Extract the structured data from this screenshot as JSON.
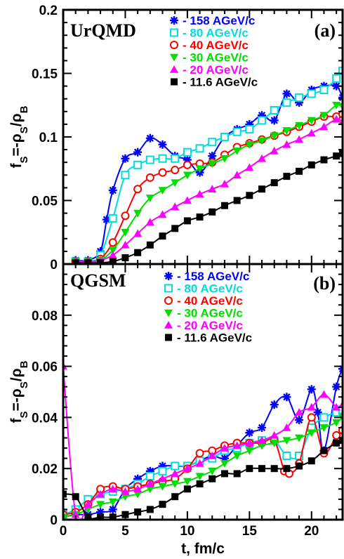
{
  "chart_data": [
    {
      "type": "line",
      "panel_label": "(a)",
      "model": "UrQMD",
      "ylabel": "f_S=-ρ_S/ρ_B",
      "ylim": [
        0,
        0.2
      ],
      "xlim": [
        0,
        22.5
      ],
      "yticks": [
        "0",
        "0.05",
        "0.1",
        "0.15",
        "0.2"
      ],
      "xticks": [
        "0",
        "5",
        "10",
        "15",
        "20"
      ],
      "series": [
        {
          "name": "- 158 AGeV/c",
          "color": "#0000ff",
          "marker": "star",
          "x": [
            1,
            2,
            3,
            3.5,
            4,
            5,
            6,
            7,
            8,
            9,
            10,
            11,
            12,
            13,
            14,
            15,
            16,
            17,
            18,
            19,
            20,
            21,
            22,
            22.5
          ],
          "y": [
            0.003,
            0.003,
            0.01,
            0.035,
            0.058,
            0.083,
            0.088,
            0.099,
            0.094,
            0.085,
            0.082,
            0.072,
            0.085,
            0.1,
            0.106,
            0.11,
            0.117,
            0.113,
            0.134,
            0.127,
            0.137,
            0.14,
            0.14,
            0.131
          ]
        },
        {
          "name": "- 80 AGeV/c",
          "color": "#00dddd",
          "marker": "open-square",
          "x": [
            1,
            2,
            3,
            4,
            5,
            6,
            7,
            8,
            9,
            10,
            11,
            12,
            13,
            14,
            15,
            16,
            17,
            18,
            19,
            20,
            21,
            22,
            22.5
          ],
          "y": [
            0.002,
            0.002,
            0.007,
            0.036,
            0.07,
            0.078,
            0.082,
            0.083,
            0.083,
            0.088,
            0.091,
            0.096,
            0.1,
            0.104,
            0.106,
            0.113,
            0.121,
            0.127,
            0.131,
            0.134,
            0.137,
            0.146,
            0.152
          ]
        },
        {
          "name": "- 40 AGeV/c",
          "color": "#ff0000",
          "marker": "open-circle",
          "x": [
            1,
            2,
            3,
            4,
            5,
            6,
            7,
            8,
            9,
            10,
            11,
            12,
            13,
            14,
            15,
            16,
            17,
            18,
            19,
            20,
            21,
            22,
            22.5
          ],
          "y": [
            0.002,
            0.002,
            0.004,
            0.017,
            0.038,
            0.059,
            0.068,
            0.072,
            0.074,
            0.078,
            0.079,
            0.08,
            0.086,
            0.092,
            0.095,
            0.098,
            0.101,
            0.104,
            0.108,
            0.112,
            0.116,
            0.116,
            0.118
          ]
        },
        {
          "name": "- 30 AGeV/c",
          "color": "#00dd00",
          "marker": "filled-triangle-down",
          "x": [
            1,
            2,
            3,
            4,
            5,
            6,
            7,
            8,
            9,
            10,
            11,
            12,
            13,
            14,
            15,
            16,
            17,
            18,
            19,
            20,
            21,
            22,
            22.5
          ],
          "y": [
            0.002,
            0.002,
            0.003,
            0.011,
            0.025,
            0.04,
            0.052,
            0.058,
            0.064,
            0.07,
            0.075,
            0.079,
            0.083,
            0.089,
            0.094,
            0.097,
            0.101,
            0.105,
            0.109,
            0.113,
            0.117,
            0.125,
            0.124
          ]
        },
        {
          "name": "- 20 AGeV/c",
          "color": "#ff00ff",
          "marker": "filled-triangle-up",
          "x": [
            1,
            2,
            3,
            4,
            5,
            6,
            7,
            8,
            9,
            10,
            11,
            12,
            13,
            14,
            15,
            16,
            17,
            18,
            19,
            20,
            21,
            22,
            22.5
          ],
          "y": [
            0.002,
            0.002,
            0.003,
            0.007,
            0.015,
            0.024,
            0.033,
            0.039,
            0.045,
            0.05,
            0.055,
            0.059,
            0.063,
            0.07,
            0.076,
            0.083,
            0.089,
            0.094,
            0.098,
            0.103,
            0.108,
            0.114,
            0.112
          ]
        },
        {
          "name": "- 11.6 AGeV/c",
          "color": "#000000",
          "marker": "filled-square",
          "x": [
            1,
            2,
            3,
            4,
            5,
            6,
            7,
            8,
            9,
            10,
            11,
            12,
            13,
            14,
            15,
            16,
            17,
            18,
            19,
            20,
            21,
            22,
            22.5
          ],
          "y": [
            0.001,
            0.001,
            0.001,
            0.002,
            0.005,
            0.009,
            0.015,
            0.022,
            0.028,
            0.034,
            0.037,
            0.041,
            0.046,
            0.05,
            0.054,
            0.059,
            0.064,
            0.069,
            0.073,
            0.078,
            0.082,
            0.085,
            0.087
          ]
        }
      ]
    },
    {
      "type": "line",
      "panel_label": "(b)",
      "model": "QGSM",
      "ylabel": "f_S=-ρ_S/ρ_B",
      "xlabel": "t, fm/c",
      "ylim": [
        0,
        0.1
      ],
      "xlim": [
        0,
        22.5
      ],
      "yticks": [
        "0",
        "0.02",
        "0.04",
        "0.06",
        "0.08"
      ],
      "xticks": [
        "0",
        "5",
        "10",
        "15",
        "20"
      ],
      "series": [
        {
          "name": "- 158 AGeV/c",
          "color": "#0000ff",
          "marker": "star",
          "x": [
            0,
            1,
            2,
            3,
            4,
            5,
            6,
            7,
            8,
            9,
            10,
            11,
            12,
            13,
            14,
            15,
            16,
            17,
            18,
            19,
            20,
            20.5,
            21,
            22,
            22.5
          ],
          "y": [
            0.001,
            0.002,
            0.002,
            0.003,
            0.004,
            0.012,
            0.016,
            0.019,
            0.021,
            0.021,
            0.021,
            0.023,
            0.025,
            0.024,
            0.029,
            0.034,
            0.036,
            0.045,
            0.048,
            0.039,
            0.051,
            0.042,
            0.027,
            0.052,
            0.059
          ]
        },
        {
          "name": "- 80 AGeV/c",
          "color": "#00dddd",
          "marker": "open-square",
          "x": [
            0,
            1,
            2,
            3,
            4,
            5,
            6,
            7,
            8,
            9,
            10,
            11,
            12,
            13,
            14,
            15,
            16,
            17,
            18,
            19,
            20,
            21,
            22,
            22.5
          ],
          "y": [
            0.002,
            0.004,
            0.008,
            0.01,
            0.011,
            0.012,
            0.014,
            0.017,
            0.019,
            0.021,
            0.021,
            0.023,
            0.024,
            0.027,
            0.028,
            0.03,
            0.031,
            0.031,
            0.025,
            0.025,
            0.036,
            0.04,
            0.042,
            0.043
          ]
        },
        {
          "name": "- 40 AGeV/c",
          "color": "#ff0000",
          "marker": "open-circle",
          "x": [
            0,
            1,
            2,
            3,
            4,
            5,
            6,
            7,
            8,
            9,
            10,
            11,
            12,
            13,
            14,
            15,
            16,
            17,
            17.8,
            18.2,
            19,
            20,
            21,
            22,
            22.5
          ],
          "y": [
            0.002,
            0.003,
            0.006,
            0.012,
            0.013,
            0.012,
            0.013,
            0.014,
            0.015,
            0.016,
            0.02,
            0.026,
            0.027,
            0.029,
            0.03,
            0.03,
            0.03,
            0.031,
            0.019,
            0.018,
            0.022,
            0.04,
            0.026,
            0.033,
            0.035
          ]
        },
        {
          "name": "- 30 AGeV/c",
          "color": "#00dd00",
          "marker": "filled-triangle-down",
          "x": [
            0,
            1,
            2,
            3,
            4,
            5,
            6,
            7,
            8,
            9,
            10,
            11,
            12,
            13,
            14,
            15,
            16,
            17,
            18,
            19,
            20,
            21,
            22,
            22.5
          ],
          "y": [
            0.001,
            0.002,
            0.004,
            0.006,
            0.007,
            0.009,
            0.01,
            0.012,
            0.013,
            0.014,
            0.015,
            0.017,
            0.019,
            0.022,
            0.025,
            0.027,
            0.029,
            0.03,
            0.031,
            0.032,
            0.034,
            0.036,
            0.038,
            0.04
          ]
        },
        {
          "name": "- 20 AGeV/c",
          "color": "#ff00ff",
          "marker": "filled-triangle-up",
          "x": [
            0,
            1,
            2,
            3,
            4,
            5,
            6,
            7,
            8,
            9,
            10,
            11,
            12,
            13,
            14,
            15,
            16,
            17,
            18,
            19,
            20,
            21,
            22,
            22.5
          ],
          "y": [
            0.06,
            0.002,
            0.006,
            0.01,
            0.012,
            0.011,
            0.012,
            0.014,
            0.016,
            0.018,
            0.02,
            0.022,
            0.025,
            0.028,
            0.029,
            0.03,
            0.031,
            0.033,
            0.036,
            0.042,
            0.044,
            0.049,
            0.044,
            0.045
          ]
        },
        {
          "name": "- 11.6 AGeV/c",
          "color": "#000000",
          "marker": "filled-square",
          "x": [
            0,
            1,
            2,
            3,
            4,
            5,
            6,
            7,
            8,
            9,
            10,
            11,
            12,
            13,
            14,
            15,
            16,
            17,
            18,
            19,
            20,
            21,
            22,
            22.5
          ],
          "y": [
            0.01,
            0.009,
            0.001,
            0.001,
            0.001,
            0.002,
            0.003,
            0.004,
            0.006,
            0.009,
            0.012,
            0.014,
            0.016,
            0.018,
            0.018,
            0.02,
            0.02,
            0.02,
            0.02,
            0.021,
            0.023,
            0.027,
            0.03,
            0.031
          ]
        }
      ]
    }
  ]
}
